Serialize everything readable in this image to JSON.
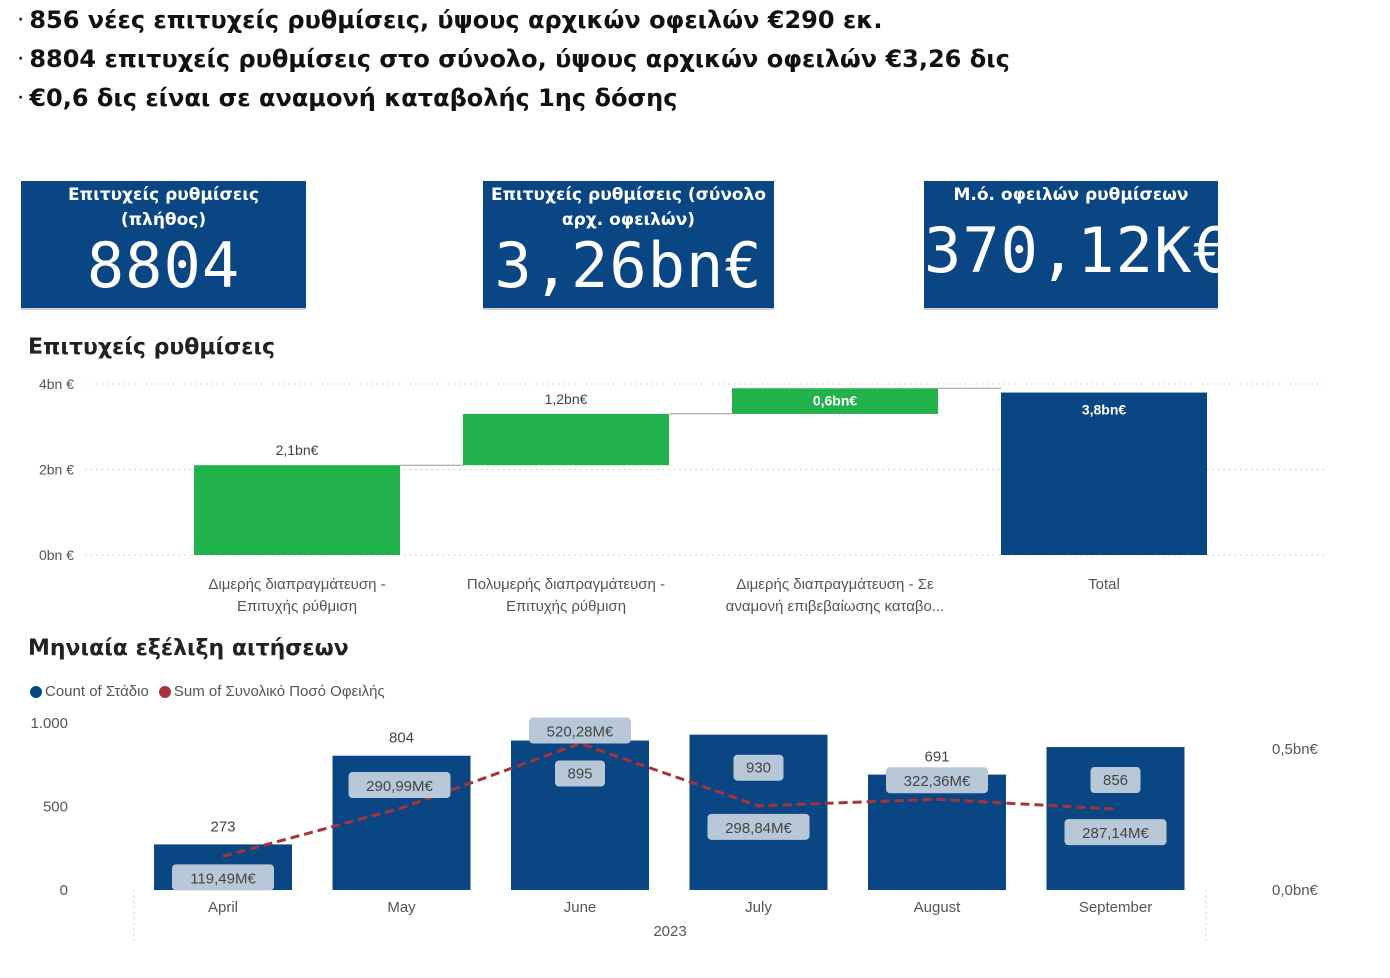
{
  "bullets": [
    "856 νέες επιτυχείς ρυθμίσεις, ύψους αρχικών οφειλών €290 εκ.",
    "8804 επιτυχείς ρυθμίσεις στο σύνολο, ύψους αρχικών οφειλών €3,26 δις",
    "€0,6 δις είναι σε αναμονή καταβολής 1ης δόσης"
  ],
  "bullet_marker": "·",
  "kpis": [
    {
      "label_lines": [
        "Επιτυχείς ρυθμίσεις",
        "(πλήθος)"
      ],
      "value": "8804"
    },
    {
      "label_lines": [
        "Επιτυχείς ρυθμίσεις (σύνολο",
        "αρχ. οφειλών)"
      ],
      "value": "3,26bn€"
    },
    {
      "label_lines": [
        "Μ.ό. οφειλών ρυθμίσεων"
      ],
      "value": "370,12K€"
    }
  ],
  "colors": {
    "kpi_bg": "#0a4683",
    "navy": "#0a4683",
    "green": "#21b24b",
    "line_red": "#a4343a",
    "label_box": "#b8c8d9"
  },
  "chart_data": [
    {
      "type": "bar",
      "subtype": "waterfall",
      "title": "Επιτυχείς ρυθμίσεις",
      "categories": [
        [
          "Διμερής διαπραγμάτευση -",
          "Επιτυχής ρύθμιση"
        ],
        [
          "Πολυμερής διαπραγμάτευση -",
          "Επιτυχής ρύθμιση"
        ],
        [
          "Διμερής διαπραγμάτευση - Σε",
          "αναμονή επιβεβαίωσης καταβο..."
        ],
        [
          "Total"
        ]
      ],
      "values": [
        2.1,
        1.2,
        0.6,
        3.8
      ],
      "kinds": [
        "increase",
        "increase",
        "increase",
        "total"
      ],
      "data_labels": [
        "2,1bn€",
        "1,2bn€",
        "0,6bn€",
        "3,8bn€"
      ],
      "y_unit": "bn €",
      "ylim": [
        0,
        4
      ],
      "y_ticks": [
        0,
        2,
        4
      ],
      "y_tick_labels": [
        "0bn €",
        "2bn €",
        "4bn €"
      ],
      "grid": true
    },
    {
      "type": "bar",
      "subtype": "combo-bar-line",
      "title": "Μηνιαία εξέλιξη αιτήσεων",
      "categories": [
        "April",
        "May",
        "June",
        "July",
        "August",
        "September"
      ],
      "x_group_label": "2023",
      "series": [
        {
          "name": "Count of Στάδιο",
          "type": "bar",
          "axis": "left",
          "values": [
            273,
            804,
            895,
            930,
            691,
            856
          ],
          "labels": [
            "273",
            "804",
            "895",
            "930",
            "691",
            "856"
          ]
        },
        {
          "name": "Sum of Συνολικό Ποσό Οφειλής",
          "type": "line",
          "axis": "right",
          "unit": "M€",
          "values": [
            119.49,
            290.99,
            520.28,
            298.84,
            322.36,
            287.14
          ],
          "labels": [
            "119,49M€",
            "290,99M€",
            "520,28M€",
            "298,84M€",
            "322,36M€",
            "287,14M€"
          ]
        }
      ],
      "ylim_left": [
        0,
        1000
      ],
      "y_ticks_left": [
        0,
        500,
        1000
      ],
      "y_tick_labels_left": [
        "0",
        "500",
        "1.000"
      ],
      "ylim_right_millions": [
        0,
        593
      ],
      "y_ticks_right_millions": [
        0,
        500
      ],
      "y_tick_labels_right": [
        "0,0bn€",
        "0,5bn€"
      ],
      "legend_position": "top-left"
    }
  ]
}
